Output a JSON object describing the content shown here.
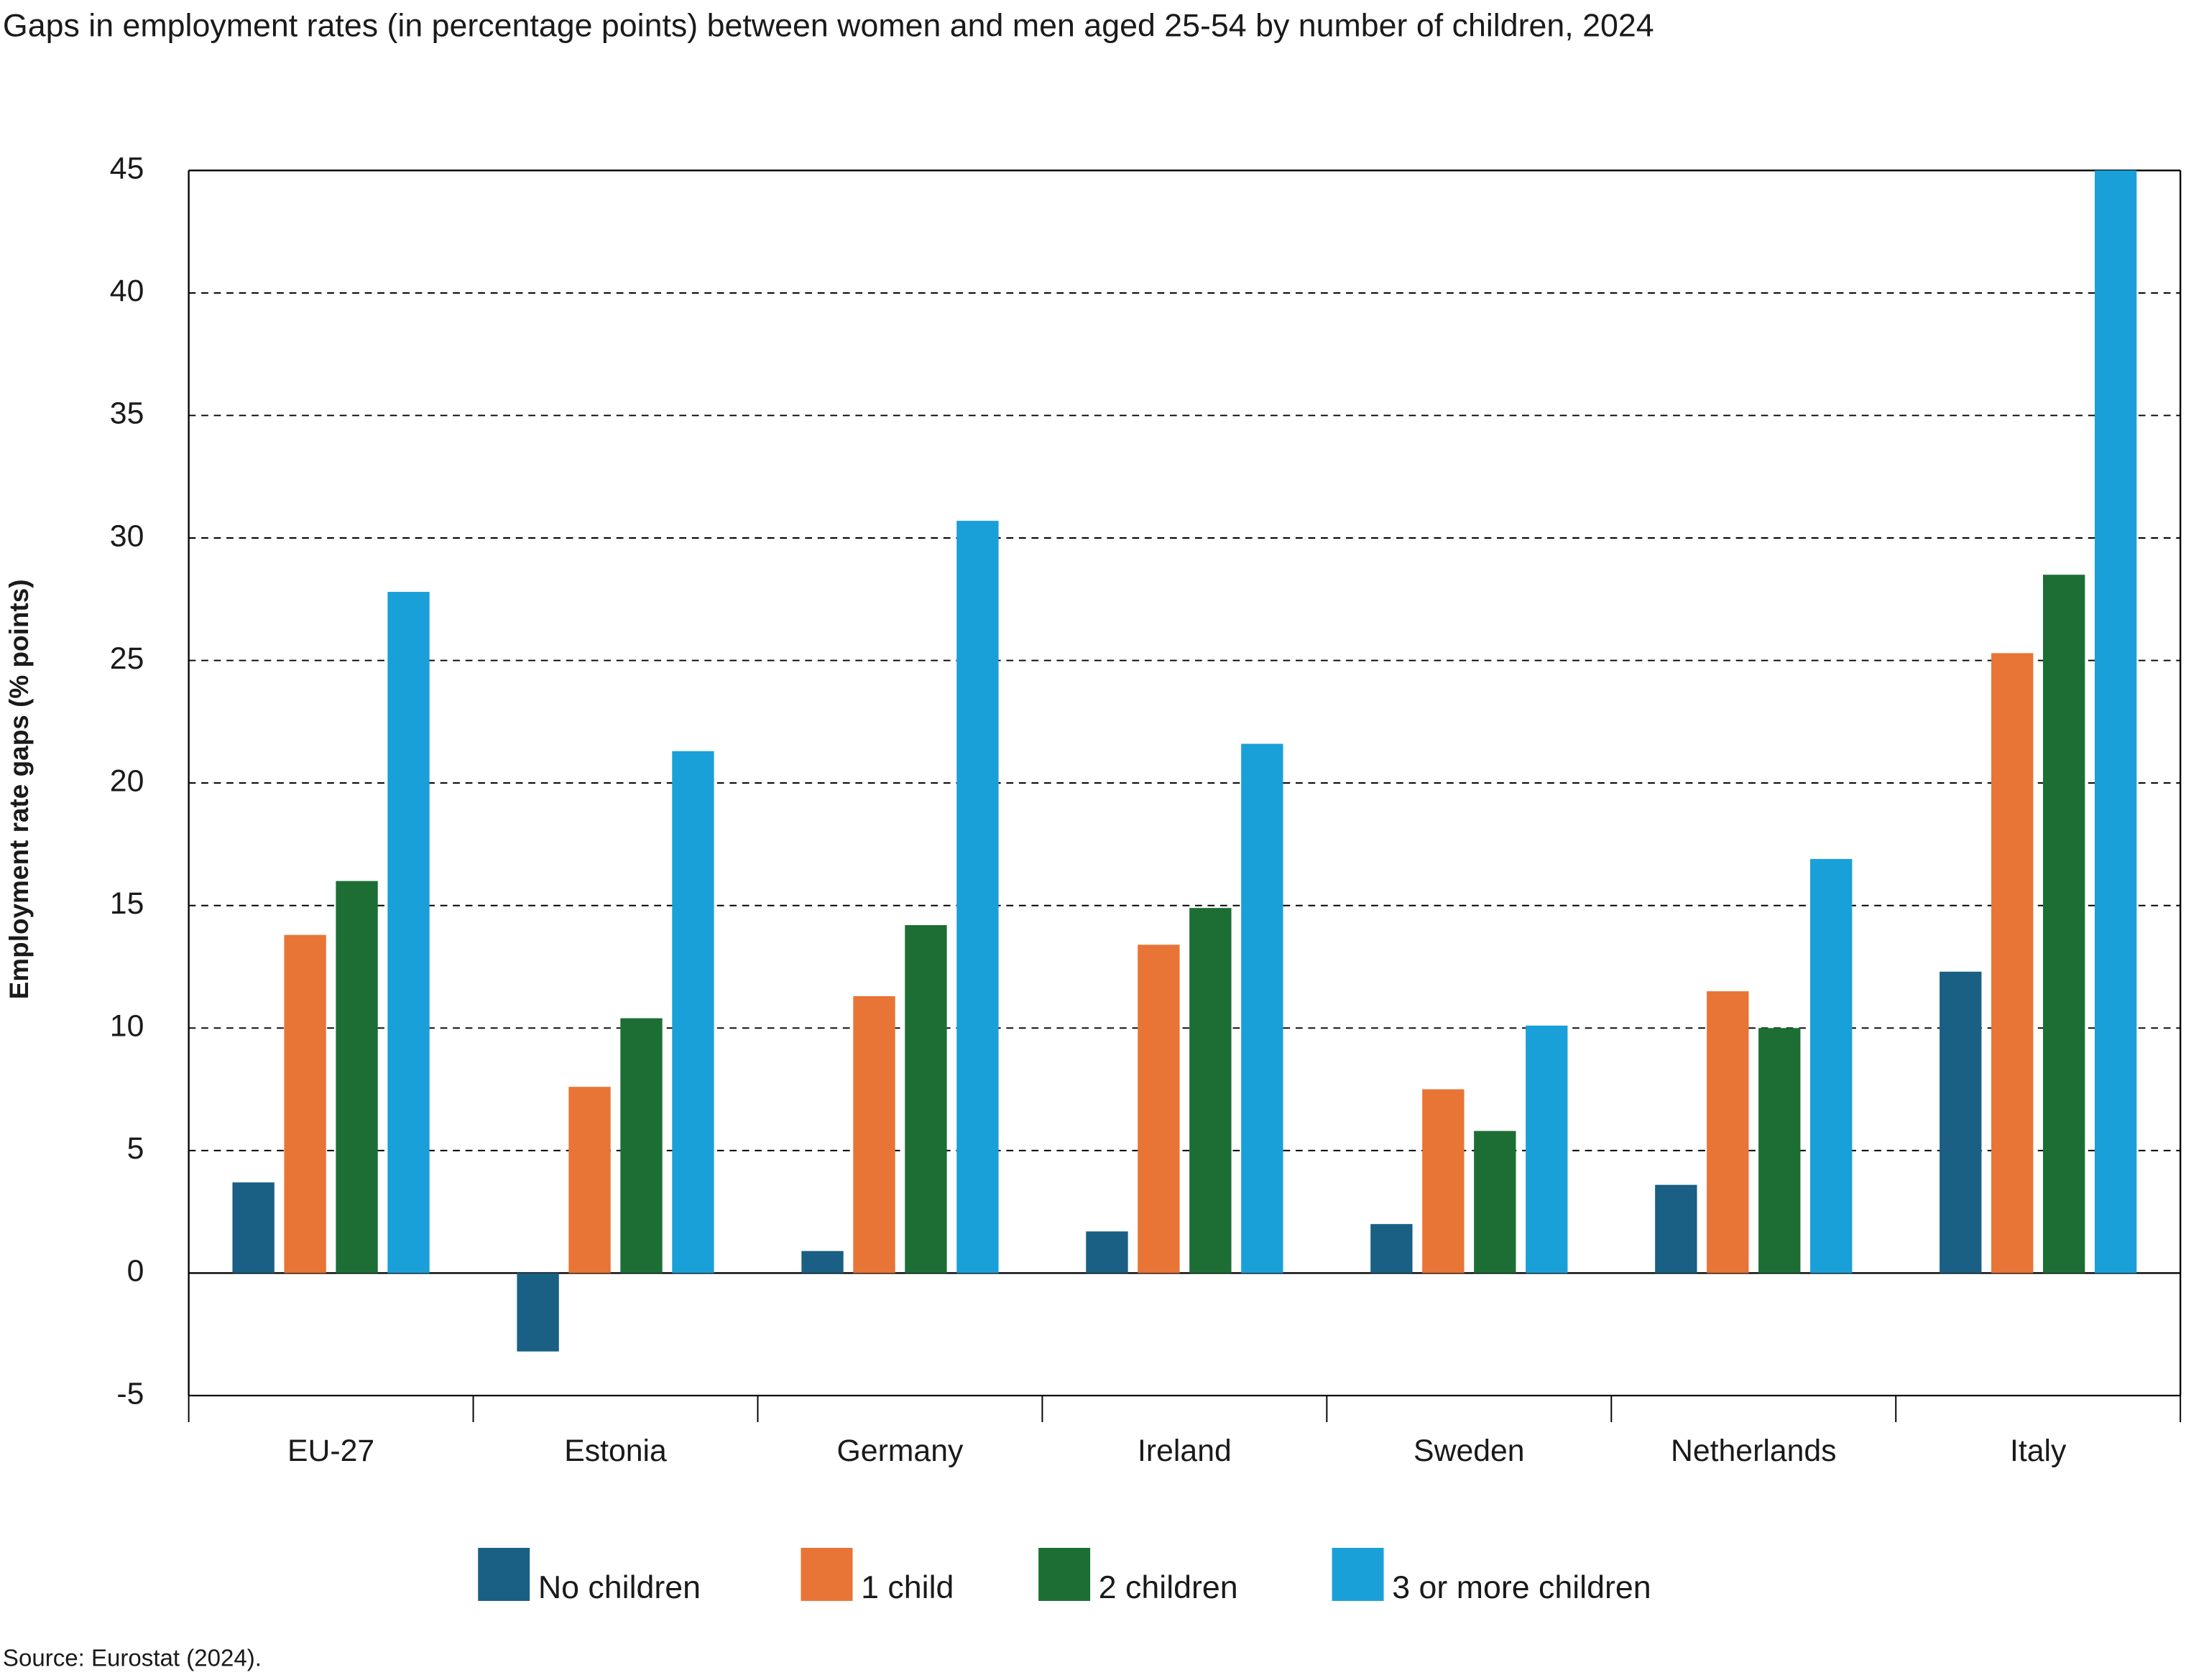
{
  "chart_data": {
    "type": "bar",
    "title": "Gaps in employment rates (in percentage points) between women and men aged 25-54 by number of children, 2024",
    "y_label": "Employment  rate  gaps (% points)",
    "source": "Source: Eurostat (2024).",
    "categories": [
      "EU-27",
      "Estonia",
      "Germany",
      "Ireland",
      "Sweden",
      "Netherlands",
      "Italy"
    ],
    "series": [
      {
        "name": "No children",
        "color": "#1a5f84",
        "values": [
          3.7,
          -3.2,
          0.9,
          1.7,
          2.0,
          3.6,
          12.3
        ]
      },
      {
        "name": "1 child",
        "color": "#e87436",
        "values": [
          13.8,
          7.6,
          11.3,
          13.4,
          7.5,
          11.5,
          25.3
        ]
      },
      {
        "name": "2 children",
        "color": "#1c6e35",
        "values": [
          16.0,
          10.4,
          14.2,
          14.9,
          5.8,
          10.0,
          28.5
        ]
      },
      {
        "name": "3 or more children",
        "color": "#1aa0d8",
        "values": [
          27.8,
          21.3,
          30.7,
          21.6,
          10.1,
          16.9,
          45
        ]
      }
    ],
    "ylim": [
      -5,
      45
    ],
    "yticks": [
      -5,
      0,
      5,
      10,
      15,
      20,
      25,
      30,
      35,
      40,
      45
    ],
    "grid": true
  }
}
